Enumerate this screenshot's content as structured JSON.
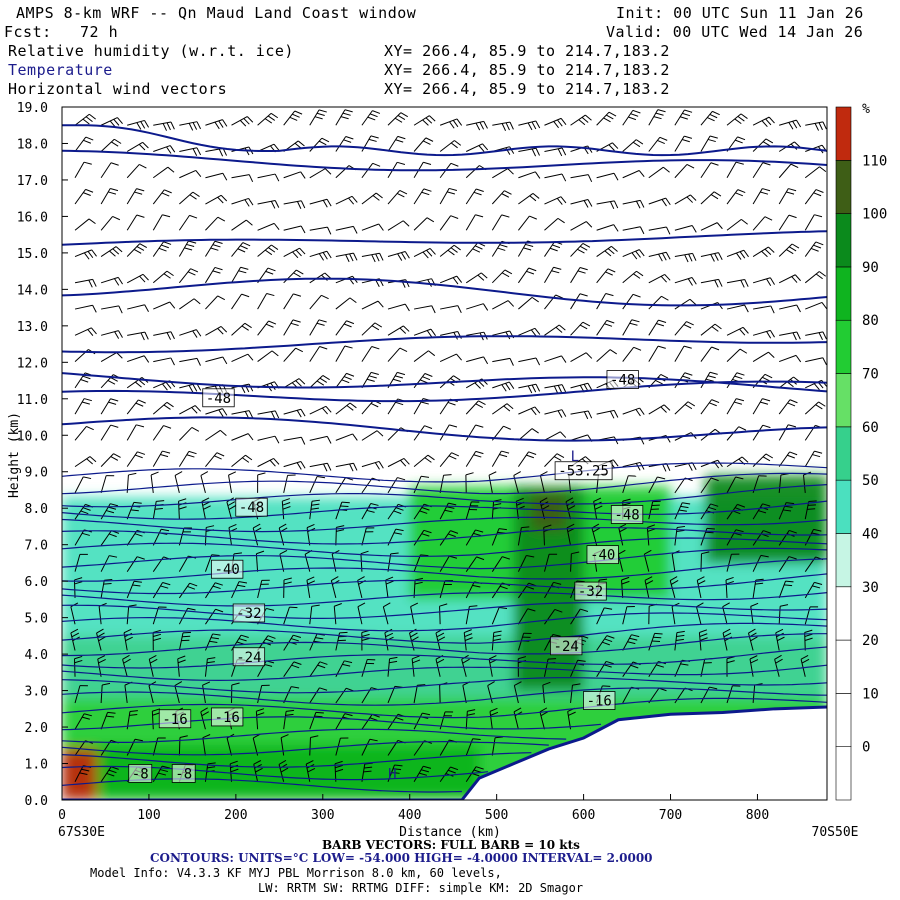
{
  "header": {
    "title": "AMPS 8-km WRF -- Qn Maud Land Coast window",
    "fcst_label": "Fcst:",
    "fcst_value": "72 h",
    "init": "Init: 00 UTC Sun 11 Jan 26",
    "valid": "Valid: 00 UTC Wed 14 Jan 26",
    "fields": [
      {
        "name": "Relative humidity (w.r.t. ice)",
        "xy": "XY= 266.4, 85.9 to 214.7,183.2"
      },
      {
        "name": "Temperature",
        "xy": "XY= 266.4, 85.9 to 214.7,183.2"
      },
      {
        "name": "Horizontal wind vectors",
        "xy": "XY= 266.4, 85.9 to 214.7,183.2"
      }
    ]
  },
  "chart_data": {
    "type": "heatmap",
    "title": "Cross-section: Relative humidity (w.r.t. ice), Temperature, Horizontal wind vectors",
    "xlabel": "Distance (km)",
    "ylabel": "Height (km)",
    "xlim": [
      0,
      880
    ],
    "ylim": [
      0,
      19
    ],
    "x_ticks": [
      0,
      100,
      200,
      300,
      400,
      500,
      600,
      700,
      800
    ],
    "y_ticks": [
      "0.0",
      "1.0",
      "2.0",
      "3.0",
      "4.0",
      "5.0",
      "6.0",
      "7.0",
      "8.0",
      "9.0",
      "10.0",
      "11.0",
      "12.0",
      "13.0",
      "14.0",
      "15.0",
      "16.0",
      "17.0",
      "18.0",
      "19.0"
    ],
    "x_start_label": "67S30E",
    "x_end_label": "70S50E",
    "colorbar": {
      "unit": "%",
      "ticks": [
        0,
        10,
        20,
        30,
        40,
        50,
        60,
        70,
        80,
        90,
        100,
        110
      ],
      "bins": [
        {
          "min": -10,
          "max": 0,
          "color": "#ffffff"
        },
        {
          "min": 0,
          "max": 10,
          "color": "#ffffff"
        },
        {
          "min": 10,
          "max": 20,
          "color": "#ffffff"
        },
        {
          "min": 20,
          "max": 30,
          "color": "#ffffff"
        },
        {
          "min": 30,
          "max": 40,
          "color": "#c6f5e4"
        },
        {
          "min": 40,
          "max": 50,
          "color": "#4be0bf"
        },
        {
          "min": 50,
          "max": 60,
          "color": "#36d08c"
        },
        {
          "min": 60,
          "max": 70,
          "color": "#66e066"
        },
        {
          "min": 70,
          "max": 80,
          "color": "#22cc33"
        },
        {
          "min": 80,
          "max": 90,
          "color": "#0fb41f"
        },
        {
          "min": 90,
          "max": 100,
          "color": "#0b8a1c"
        },
        {
          "min": 100,
          "max": 110,
          "color": "#3e5e16"
        },
        {
          "min": 110,
          "max": 120,
          "color": "#c02a0e"
        }
      ]
    },
    "rh_bands": [
      {
        "x": [
          0,
          880
        ],
        "z": [
          0,
          2.8
        ],
        "rh": 75
      },
      {
        "x": [
          0,
          880
        ],
        "z": [
          2.8,
          4.5
        ],
        "rh": 55
      },
      {
        "x": [
          0,
          880
        ],
        "z": [
          4.5,
          8.3
        ],
        "rh": 45
      },
      {
        "x": [
          400,
          700
        ],
        "z": [
          5.5,
          8.6
        ],
        "rh": 78
      },
      {
        "x": [
          520,
          600
        ],
        "z": [
          3.0,
          8.6
        ],
        "rh": 92
      },
      {
        "x": [
          540,
          580
        ],
        "z": [
          7.4,
          8.4
        ],
        "rh": 105
      },
      {
        "x": [
          740,
          880
        ],
        "z": [
          6.5,
          8.9
        ],
        "rh": 95
      },
      {
        "x": [
          0,
          480
        ],
        "z": [
          0,
          1.5
        ],
        "rh": 85
      },
      {
        "x": [
          0,
          40
        ],
        "z": [
          0,
          1.4
        ],
        "rh": 112
      }
    ],
    "terrain": [
      [
        0,
        0
      ],
      [
        460,
        0
      ],
      [
        480,
        0.6
      ],
      [
        520,
        1.0
      ],
      [
        560,
        1.4
      ],
      [
        600,
        1.7
      ],
      [
        640,
        2.2
      ],
      [
        700,
        2.35
      ],
      [
        760,
        2.4
      ],
      [
        820,
        2.5
      ],
      [
        880,
        2.55
      ]
    ],
    "temperature_contours": {
      "unit": "°C",
      "low": -54.0,
      "high": -4.0,
      "interval": 2.0,
      "labels": [
        {
          "text": "-48",
          "x": 180,
          "z": 11.0
        },
        {
          "text": "-48",
          "x": 645,
          "z": 11.5
        },
        {
          "text": "-53.25",
          "x": 600,
          "z": 9.0
        },
        {
          "text": "L",
          "x": 590,
          "z": 9.4
        },
        {
          "text": "-48",
          "x": 218,
          "z": 8.0
        },
        {
          "text": "-48",
          "x": 650,
          "z": 7.8
        },
        {
          "text": "-40",
          "x": 190,
          "z": 6.3
        },
        {
          "text": "-40",
          "x": 622,
          "z": 6.7
        },
        {
          "text": "-32",
          "x": 215,
          "z": 5.1
        },
        {
          "text": "-32",
          "x": 608,
          "z": 5.7
        },
        {
          "text": "-24",
          "x": 215,
          "z": 3.9
        },
        {
          "text": "-24",
          "x": 580,
          "z": 4.2
        },
        {
          "text": "-16",
          "x": 130,
          "z": 2.2
        },
        {
          "text": "-16",
          "x": 190,
          "z": 2.25
        },
        {
          "text": "-16",
          "x": 618,
          "z": 2.7
        },
        {
          "text": "-8",
          "x": 90,
          "z": 0.7
        },
        {
          "text": "-8",
          "x": 140,
          "z": 0.7
        },
        {
          "text": "H",
          "x": 380,
          "z": 0.7
        }
      ]
    },
    "wind_barbs": {
      "note": "BARB VECTORS: FULL BARB = 10 kts"
    }
  },
  "footer": {
    "barb_note": "BARB VECTORS: FULL BARB = 10 kts",
    "contours": "CONTOURS: UNITS=°C LOW= -54.000 HIGH= -4.0000 INTERVAL= 2.0000",
    "model_info": "Model Info: V4.3.3 KF MYJ PBL Morrison 8.0 km, 60 levels,",
    "physics": "LW: RRTM SW: RRTMG DIFF: simple KM: 2D Smagor"
  },
  "colors": {
    "contour": "#0c1a8c",
    "barb": "#000000",
    "terrain_line": "#0c1a8c"
  }
}
